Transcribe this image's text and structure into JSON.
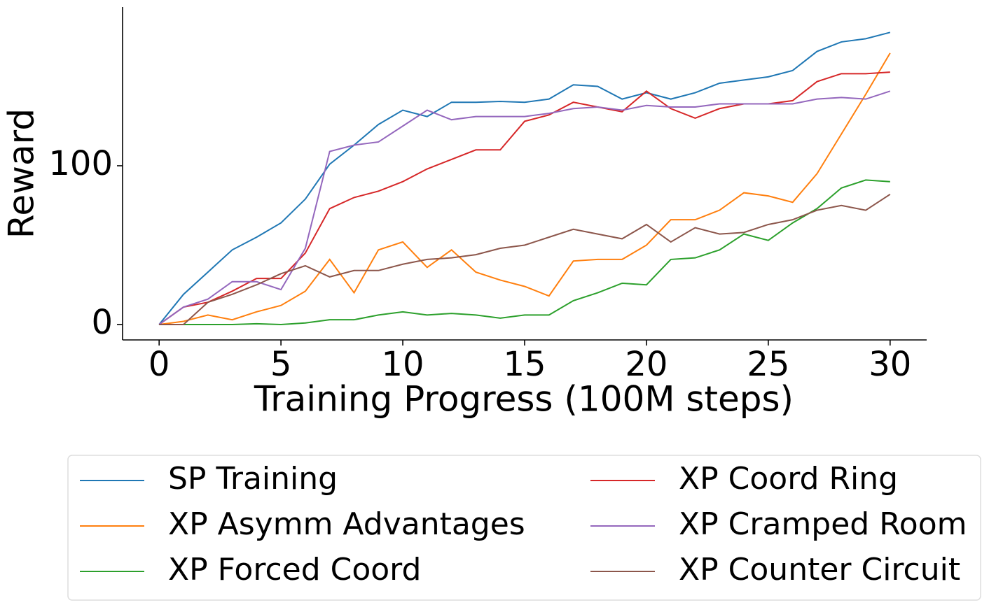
{
  "chart_data": {
    "type": "line",
    "xlabel": "Training Progress (100M steps)",
    "ylabel": "Reward",
    "x": [
      0,
      1,
      2,
      3,
      4,
      5,
      6,
      7,
      8,
      9,
      10,
      11,
      12,
      13,
      14,
      15,
      16,
      17,
      18,
      19,
      20,
      21,
      22,
      23,
      24,
      25,
      26,
      27,
      28,
      29,
      30
    ],
    "xlim": [
      -1.5,
      31.5
    ],
    "xticks": [
      0,
      5,
      10,
      15,
      20,
      25,
      30
    ],
    "ylim": [
      -9.7,
      200
    ],
    "yticks": [
      0,
      100
    ],
    "series": [
      {
        "name": "SP Training",
        "color": "#1f77b4",
        "values": [
          0,
          19,
          33,
          47,
          55,
          64,
          79,
          101,
          113,
          126,
          135,
          131,
          140,
          140,
          140.5,
          140,
          142,
          151,
          150,
          142,
          146,
          142,
          146,
          152,
          154,
          156,
          160,
          172,
          178,
          180,
          184
        ]
      },
      {
        "name": "XP Asymm Advantages",
        "color": "#ff7f0e",
        "values": [
          0,
          2,
          6,
          3,
          8,
          12,
          21,
          41,
          20,
          47,
          52,
          36,
          47,
          33,
          28,
          24,
          18,
          40,
          41,
          41,
          50,
          66,
          66,
          72,
          83,
          81,
          77,
          95,
          120,
          145,
          171
        ]
      },
      {
        "name": "XP Forced Coord",
        "color": "#2ca02c",
        "values": [
          0,
          0,
          0,
          0,
          0.5,
          0,
          1,
          3,
          3,
          6,
          8,
          6,
          7,
          6,
          4,
          6,
          6,
          15,
          20,
          26,
          25,
          41,
          42,
          47,
          57,
          53,
          64,
          73,
          86,
          91,
          90
        ]
      },
      {
        "name": "XP Coord Ring",
        "color": "#d62728",
        "values": [
          0,
          11,
          14,
          21,
          29,
          29,
          45,
          73,
          80,
          84,
          90,
          98,
          104,
          110,
          110,
          128,
          132,
          140,
          137,
          134,
          147,
          136,
          130,
          136,
          139,
          139,
          141,
          153,
          158,
          158,
          159
        ]
      },
      {
        "name": "XP Cramped Room",
        "color": "#9467bd",
        "values": [
          0,
          11,
          16,
          27,
          27,
          22,
          48,
          109,
          113,
          115,
          125,
          135,
          129,
          131,
          131,
          131,
          133,
          136,
          137,
          135,
          138,
          137,
          137,
          139,
          139,
          139,
          139,
          142,
          143,
          142,
          147
        ]
      },
      {
        "name": "XP Counter Circuit",
        "color": "#8c564b",
        "values": [
          0,
          0,
          14,
          19,
          25,
          32,
          37,
          30,
          34,
          34,
          38,
          41,
          42,
          44,
          48,
          50,
          55,
          60,
          57,
          54,
          63,
          52,
          61,
          57,
          58,
          63,
          66,
          72,
          75,
          72,
          82
        ]
      }
    ]
  }
}
